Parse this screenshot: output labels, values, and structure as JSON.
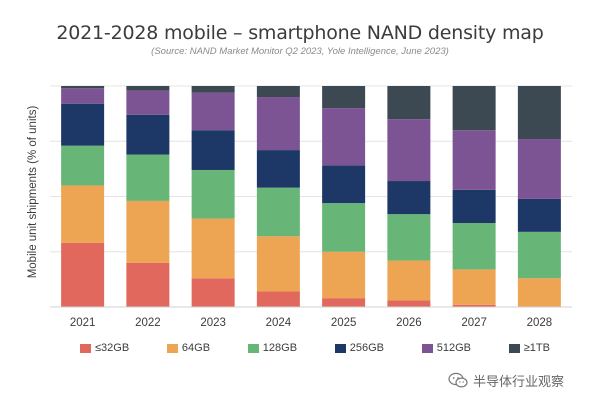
{
  "chart_data": {
    "type": "bar",
    "stacked": true,
    "title": "2021-2028 mobile – smartphone NAND density map",
    "subtitle": "(Source: NAND Market Monitor Q2 2023, Yole Intelligence, June 2023)",
    "xlabel": "",
    "ylabel": "Mobile unit shipments (% of units)",
    "ylim": [
      0,
      100
    ],
    "legend_position": "bottom",
    "categories": [
      "2021",
      "2022",
      "2023",
      "2024",
      "2025",
      "2026",
      "2027",
      "2028"
    ],
    "series": [
      {
        "name": "≤32GB",
        "color": "#e0685c",
        "values": [
          29,
          20,
          13,
          7,
          4,
          3,
          1,
          0
        ]
      },
      {
        "name": "64GB",
        "color": "#eea553",
        "values": [
          26,
          28,
          27,
          25,
          21,
          18,
          16,
          13
        ]
      },
      {
        "name": "128GB",
        "color": "#67b678",
        "values": [
          18,
          21,
          22,
          22,
          22,
          21,
          21,
          21
        ]
      },
      {
        "name": "256GB",
        "color": "#1d3866",
        "values": [
          19,
          18,
          18,
          17,
          17,
          15,
          15,
          15
        ]
      },
      {
        "name": "512GB",
        "color": "#7c5494",
        "values": [
          7,
          11,
          17,
          24,
          26,
          28,
          27,
          27
        ]
      },
      {
        "name": "≥1TB",
        "color": "#3c4852",
        "values": [
          1,
          2,
          3,
          5,
          10,
          15,
          20,
          24
        ]
      }
    ]
  },
  "watermark": {
    "text": "半导体行业观察",
    "icon": "wechat-icon"
  }
}
